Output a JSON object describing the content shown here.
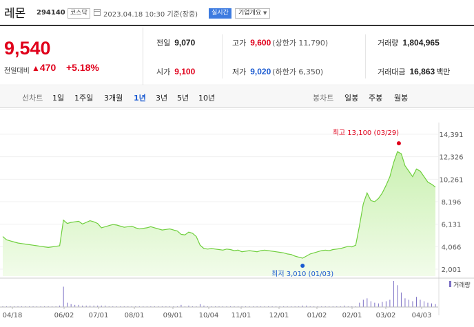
{
  "header": {
    "name": "레몬",
    "code": "294140",
    "market": "코스닥",
    "datetime": "2023.04.18 10:30",
    "basis": "기준(장중)",
    "realtime": "실시간",
    "company_btn": "기업개요"
  },
  "price": {
    "current": "9,540",
    "change_label": "전일대비",
    "change_value": "470",
    "change_pct": "+5.18%",
    "prev_close_label": "전일",
    "prev_close": "9,070",
    "open_label": "시가",
    "open": "9,100",
    "high_label": "고가",
    "high": "9,600",
    "upper_limit": "(상한가 11,790)",
    "low_label": "저가",
    "low": "9,020",
    "lower_limit": "(하한가 6,350)",
    "volume_label": "거래량",
    "volume": "1,804,965",
    "amount_label": "거래대금",
    "amount": "16,863",
    "amount_unit": "백만"
  },
  "tabs": {
    "line_label": "선차트",
    "line_periods": [
      "1일",
      "1주일",
      "3개월",
      "1년",
      "3년",
      "5년",
      "10년"
    ],
    "active_period": "1년",
    "candle_label": "봉차트",
    "candle_periods": [
      "일봉",
      "주봉",
      "월봉"
    ]
  },
  "chart_data": {
    "type": "area",
    "colors": {
      "line": "#6fcf3d",
      "fill_top": "#c9f0b0",
      "fill_bottom": "#f2fcea",
      "high": "#e0001b",
      "low": "#1a5ad1",
      "volume": "#7b6fc4"
    },
    "y_ticks": [
      "14,391",
      "12,326",
      "10,261",
      "8,196",
      "6,131",
      "4,066",
      "2,001"
    ],
    "ylim": [
      2001,
      14391
    ],
    "x_ticks": [
      "04/18",
      "06/02",
      "07/01",
      "08/01",
      "09/01",
      "10/04",
      "11/01",
      "12/01",
      "01/02",
      "02/01",
      "03/02",
      "04/03"
    ],
    "high_label": "최고 13,100 (03/29)",
    "low_label": "최저 3,010 (01/03)",
    "volume_legend": "거래량",
    "series": [
      {
        "values": [
          5000,
          4700,
          4600,
          4500,
          4400,
          4350,
          4300,
          4250,
          4200,
          4150,
          4100,
          4050,
          4000,
          4050,
          4100,
          4150,
          6500,
          6200,
          6300,
          6350,
          6400,
          6150,
          6300,
          6450,
          6350,
          6200,
          5800,
          5900,
          6000,
          6100,
          6050,
          5950,
          5850,
          5900,
          5950,
          5800,
          5700,
          5750,
          5800,
          5900,
          5800,
          5700,
          5600,
          5650,
          5700,
          5600,
          5500,
          5200,
          5150,
          5400,
          5300,
          5000,
          4200,
          3900,
          3850,
          3900,
          3850,
          3800,
          3750,
          3850,
          3800,
          3700,
          3750,
          3600,
          3650,
          3700,
          3650,
          3600,
          3700,
          3750,
          3700,
          3650,
          3600,
          3550,
          3500,
          3400,
          3350,
          3200,
          3100,
          3010,
          3200,
          3400,
          3500,
          3600,
          3700,
          3750,
          3700,
          3800,
          3850,
          3900,
          4000,
          4100,
          4050,
          4200,
          6000,
          8000,
          9000,
          8300,
          8200,
          8500,
          9000,
          9700,
          10500,
          11800,
          12800,
          12600,
          11500,
          11000,
          10500,
          11200,
          11000,
          10500,
          10000,
          9800,
          9540
        ]
      }
    ],
    "volume_values": [
      1,
      1,
      1,
      1,
      1,
      1,
      1,
      1,
      1,
      1,
      1,
      1,
      1,
      1,
      1,
      2,
      28,
      6,
      4,
      3,
      3,
      2,
      2,
      2,
      2,
      2,
      2,
      2,
      1,
      1,
      1,
      1,
      1,
      1,
      1,
      1,
      1,
      1,
      1,
      1,
      1,
      1,
      1,
      1,
      1,
      1,
      1,
      3,
      1,
      2,
      1,
      1,
      4,
      2,
      1,
      1,
      1,
      1,
      1,
      1,
      1,
      1,
      1,
      1,
      1,
      1,
      1,
      1,
      1,
      1,
      1,
      1,
      1,
      1,
      1,
      1,
      1,
      1,
      1,
      2,
      2,
      1,
      1,
      1,
      1,
      1,
      1,
      1,
      1,
      1,
      2,
      1,
      1,
      1,
      6,
      10,
      12,
      8,
      6,
      5,
      7,
      8,
      10,
      36,
      30,
      20,
      12,
      10,
      8,
      14,
      10,
      8,
      6,
      5,
      4
    ]
  }
}
